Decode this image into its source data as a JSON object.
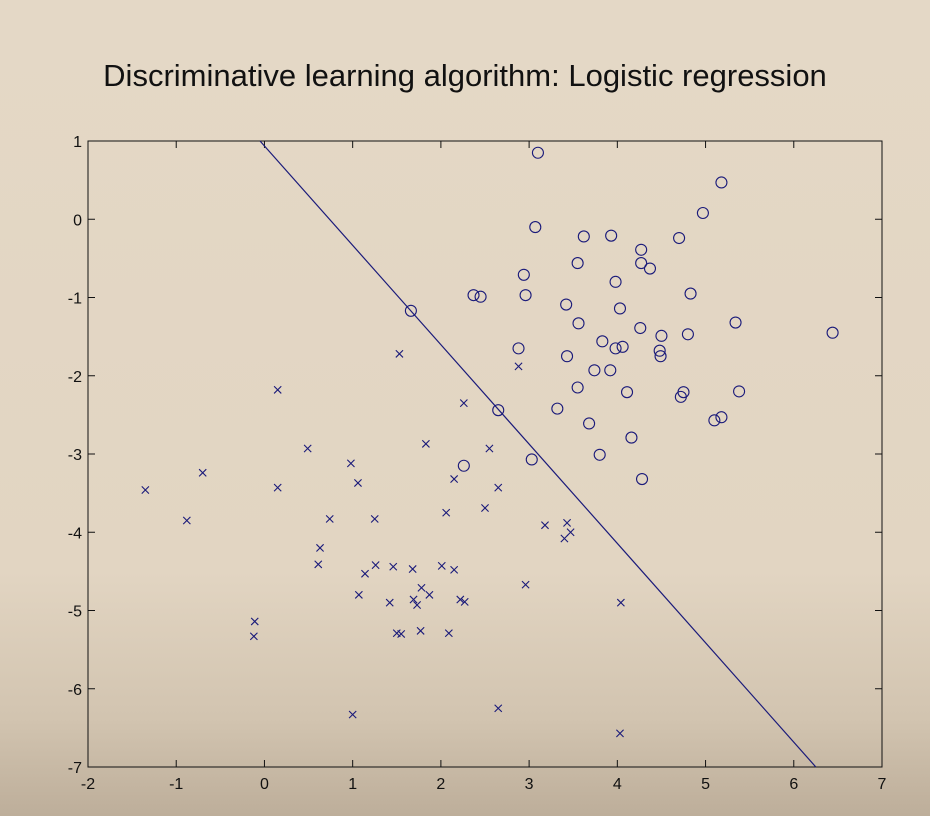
{
  "chart_data": {
    "type": "scatter",
    "title": "Discriminative learning algorithm: Logistic regression",
    "xlabel": "",
    "ylabel": "",
    "xlim": [
      -2,
      7
    ],
    "ylim": [
      -7,
      1
    ],
    "xticks": [
      -2,
      -1,
      0,
      1,
      2,
      3,
      4,
      5,
      6,
      7
    ],
    "yticks": [
      -7,
      -6,
      -5,
      -4,
      -3,
      -2,
      -1,
      0,
      1
    ],
    "grid": false,
    "legend": "none",
    "colors": {
      "marker": "#1a1a7a",
      "line": "#1a1a7a",
      "axes": "#111111",
      "plot_bg": "#e4d8c6"
    },
    "decision_boundary": {
      "x": [
        -0.05,
        6.25
      ],
      "y": [
        1.0,
        -7.0
      ]
    },
    "series": [
      {
        "marker": "o",
        "points": [
          [
            3.1,
            0.85
          ],
          [
            5.18,
            0.47
          ],
          [
            4.97,
            0.08
          ],
          [
            3.07,
            -0.1
          ],
          [
            3.62,
            -0.22
          ],
          [
            3.93,
            -0.21
          ],
          [
            4.7,
            -0.24
          ],
          [
            4.27,
            -0.39
          ],
          [
            3.55,
            -0.56
          ],
          [
            4.27,
            -0.56
          ],
          [
            4.37,
            -0.63
          ],
          [
            2.94,
            -0.71
          ],
          [
            3.98,
            -0.8
          ],
          [
            2.37,
            -0.97
          ],
          [
            2.45,
            -0.99
          ],
          [
            2.96,
            -0.97
          ],
          [
            4.83,
            -0.95
          ],
          [
            3.42,
            -1.09
          ],
          [
            4.03,
            -1.14
          ],
          [
            1.66,
            -1.17
          ],
          [
            3.56,
            -1.33
          ],
          [
            5.34,
            -1.32
          ],
          [
            4.26,
            -1.39
          ],
          [
            6.44,
            -1.45
          ],
          [
            4.5,
            -1.49
          ],
          [
            4.8,
            -1.47
          ],
          [
            3.83,
            -1.56
          ],
          [
            4.06,
            -1.63
          ],
          [
            3.98,
            -1.65
          ],
          [
            2.88,
            -1.65
          ],
          [
            4.48,
            -1.68
          ],
          [
            4.49,
            -1.75
          ],
          [
            3.43,
            -1.75
          ],
          [
            3.92,
            -1.93
          ],
          [
            3.74,
            -1.93
          ],
          [
            3.55,
            -2.15
          ],
          [
            4.11,
            -2.21
          ],
          [
            4.75,
            -2.21
          ],
          [
            5.38,
            -2.2
          ],
          [
            4.72,
            -2.27
          ],
          [
            3.32,
            -2.42
          ],
          [
            2.65,
            -2.44
          ],
          [
            5.18,
            -2.53
          ],
          [
            5.1,
            -2.57
          ],
          [
            3.68,
            -2.61
          ],
          [
            4.16,
            -2.79
          ],
          [
            3.8,
            -3.01
          ],
          [
            3.03,
            -3.07
          ],
          [
            2.26,
            -3.15
          ],
          [
            4.28,
            -3.32
          ]
        ]
      },
      {
        "marker": "x",
        "points": [
          [
            1.53,
            -1.72
          ],
          [
            2.88,
            -1.88
          ],
          [
            0.15,
            -2.18
          ],
          [
            2.26,
            -2.35
          ],
          [
            1.83,
            -2.87
          ],
          [
            0.49,
            -2.93
          ],
          [
            2.55,
            -2.93
          ],
          [
            0.98,
            -3.12
          ],
          [
            -0.7,
            -3.24
          ],
          [
            2.15,
            -3.32
          ],
          [
            1.06,
            -3.37
          ],
          [
            -1.35,
            -3.46
          ],
          [
            0.15,
            -3.43
          ],
          [
            2.65,
            -3.43
          ],
          [
            2.5,
            -3.69
          ],
          [
            2.06,
            -3.75
          ],
          [
            0.74,
            -3.83
          ],
          [
            1.25,
            -3.83
          ],
          [
            -0.88,
            -3.85
          ],
          [
            3.43,
            -3.88
          ],
          [
            3.18,
            -3.91
          ],
          [
            3.47,
            -4.0
          ],
          [
            3.4,
            -4.08
          ],
          [
            0.63,
            -4.2
          ],
          [
            0.61,
            -4.41
          ],
          [
            1.46,
            -4.44
          ],
          [
            2.01,
            -4.43
          ],
          [
            1.26,
            -4.42
          ],
          [
            1.68,
            -4.47
          ],
          [
            2.15,
            -4.48
          ],
          [
            1.14,
            -4.53
          ],
          [
            2.96,
            -4.67
          ],
          [
            1.78,
            -4.71
          ],
          [
            1.07,
            -4.8
          ],
          [
            1.87,
            -4.8
          ],
          [
            1.69,
            -4.86
          ],
          [
            2.22,
            -4.86
          ],
          [
            2.27,
            -4.89
          ],
          [
            1.42,
            -4.9
          ],
          [
            1.73,
            -4.93
          ],
          [
            4.04,
            -4.9
          ],
          [
            -0.11,
            -5.14
          ],
          [
            -0.12,
            -5.33
          ],
          [
            1.5,
            -5.29
          ],
          [
            1.55,
            -5.3
          ],
          [
            1.77,
            -5.26
          ],
          [
            2.09,
            -5.29
          ],
          [
            1.0,
            -6.33
          ],
          [
            2.65,
            -6.25
          ],
          [
            4.03,
            -6.57
          ]
        ]
      }
    ]
  }
}
